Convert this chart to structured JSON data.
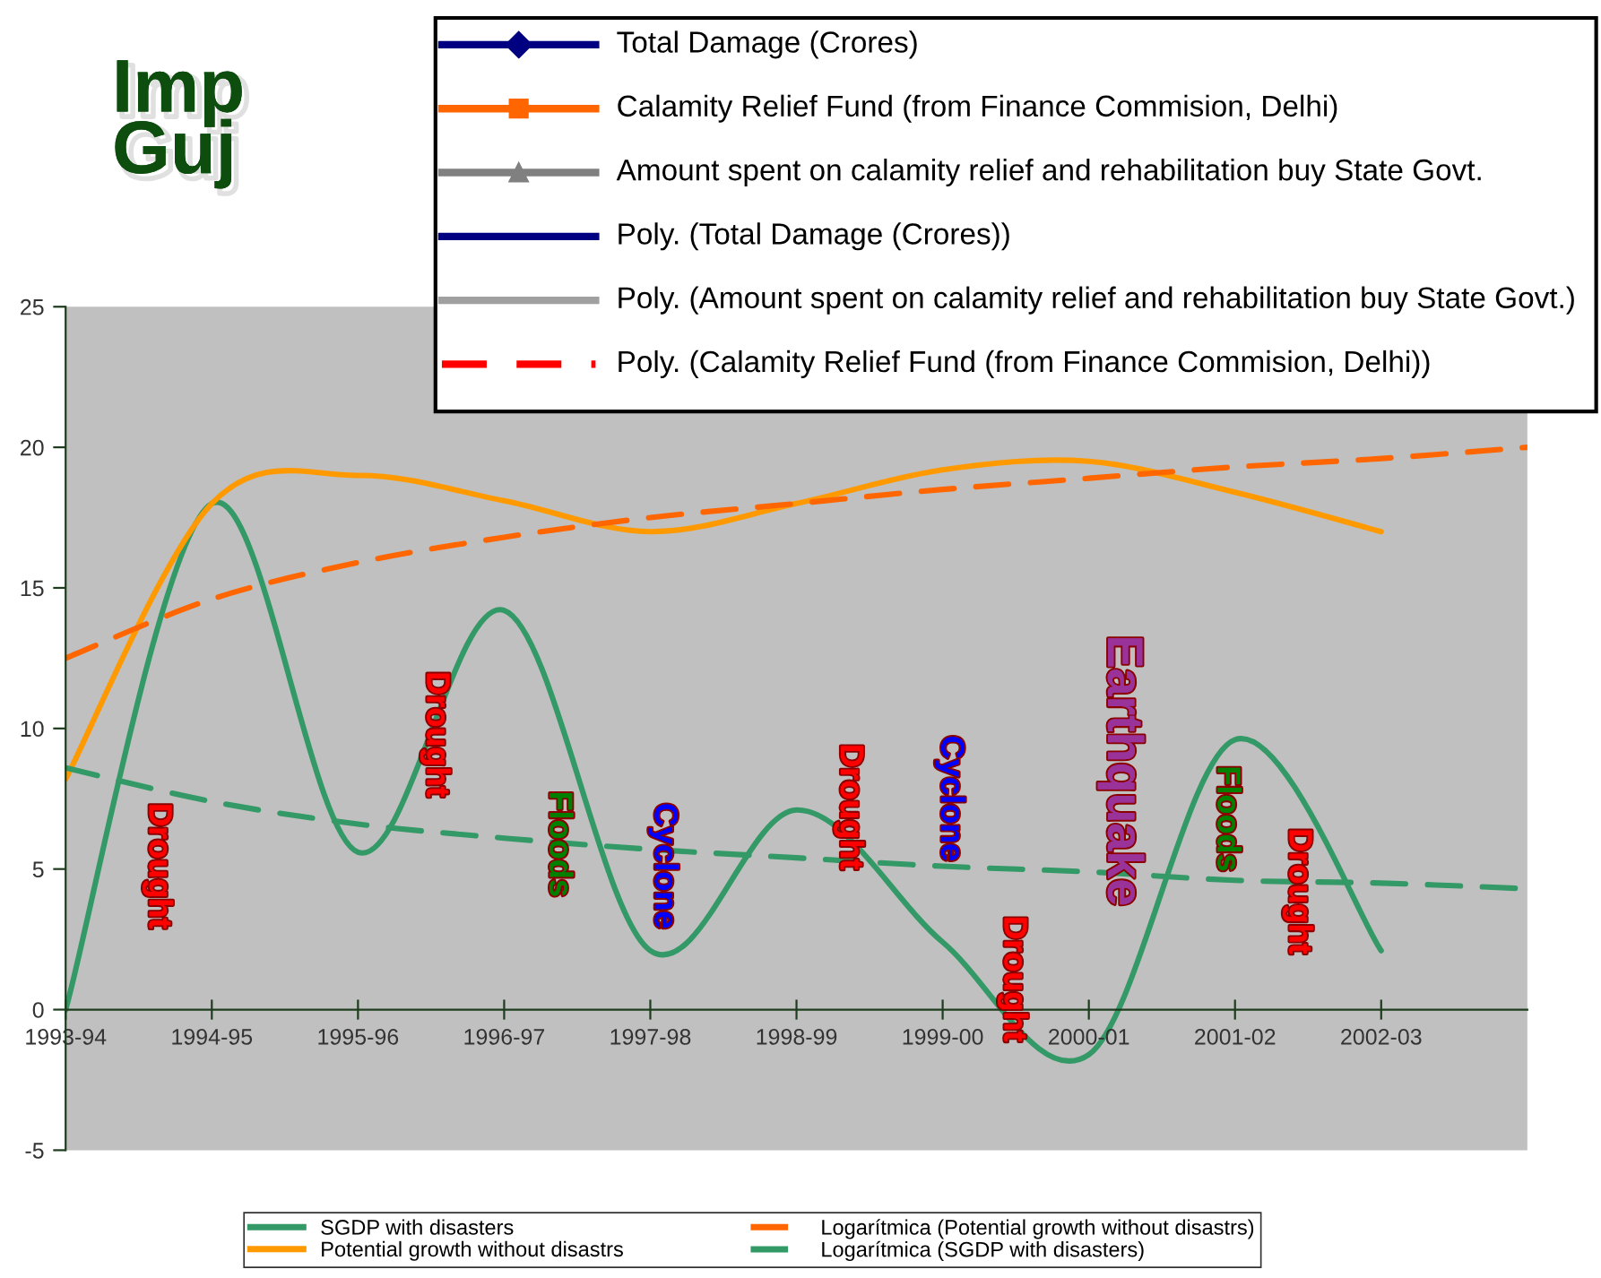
{
  "chart_data": {
    "type": "line",
    "title": "Imp\nGuj",
    "categories": [
      "1993-94",
      "1994-95",
      "1995-96",
      "1996-97",
      "1997-98",
      "1998-99",
      "1999-00",
      "2000-01",
      "2001-02",
      "2002-03",
      null
    ],
    "ylim": [
      -5,
      25
    ],
    "yticks": [
      -5,
      0,
      5,
      10,
      15,
      20,
      25
    ],
    "grid": false,
    "legend": "bottom",
    "series": [
      {
        "name": "SGDP with disasters",
        "color": "#339966",
        "marker": "none",
        "line_style": "solid",
        "values": [
          0,
          18,
          5.6,
          14.2,
          2.1,
          7.1,
          2.4,
          -1.6,
          9.6,
          2.1,
          null
        ]
      },
      {
        "name": "Potential growth without disastrs",
        "color": "#ff9900",
        "marker": "none",
        "line_style": "solid",
        "values": [
          8.2,
          18,
          19.0,
          18.1,
          17.0,
          18.0,
          19.2,
          19.5,
          18.4,
          17.0,
          null
        ]
      },
      {
        "name": "Logarítmica (Potential growth without disastrs)",
        "color": "#ff6600",
        "marker": "none",
        "line_style": "dashed",
        "values": [
          12.5,
          14.6,
          15.9,
          16.8,
          17.5,
          18.0,
          18.5,
          18.9,
          19.3,
          19.6,
          20.0
        ]
      },
      {
        "name": "Logarítmica (SGDP with disasters)",
        "color": "#339966",
        "marker": "none",
        "line_style": "dashed",
        "values": [
          8.6,
          7.4,
          6.6,
          6.1,
          5.7,
          5.4,
          5.1,
          4.9,
          4.6,
          4.5,
          4.3
        ]
      }
    ],
    "annotations": [
      "Total Damage (Crores)",
      "Calamity Relief Fund (from Finance Commision, Delhi)",
      "Amount spent on calamity relief and rehabilitation buy State Govt.",
      "Poly. (Total Damage (Crores))",
      "Poly. (Amount spent on calamity relief and rehabilitation buy State Govt.)",
      "Poly. (Calamity Relief Fund (from Finance Commision, Delhi))",
      "Drought",
      "Drought",
      "Floods",
      "Cyclone",
      "Drought",
      "Cyclone",
      "Drought",
      "Earthquake",
      "Floods",
      "Drought"
    ]
  }
}
